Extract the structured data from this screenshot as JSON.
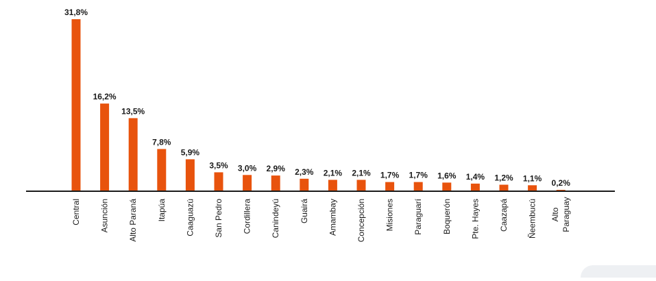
{
  "chart_data": {
    "type": "bar",
    "categories": [
      "Central",
      "Asunción",
      "Alto Paraná",
      "Itapúa",
      "Caaguazú",
      "San Pedro",
      "Cordillera",
      "Canindeyú",
      "Guairá",
      "Amambay",
      "Concepción",
      "Misiones",
      "Paraguarí",
      "Boquerón",
      "Pte. Hayes",
      "Caazapá",
      "Ñeembucú",
      "Alto Paraguay"
    ],
    "category_lines": [
      [
        "Central"
      ],
      [
        "Asunción"
      ],
      [
        "Alto Paraná"
      ],
      [
        "Itapúa"
      ],
      [
        "Caaguazú"
      ],
      [
        "San Pedro"
      ],
      [
        "Cordillera"
      ],
      [
        "Canindeyú"
      ],
      [
        "Guairá"
      ],
      [
        "Amambay"
      ],
      [
        "Concepción"
      ],
      [
        "Misiones"
      ],
      [
        "Paraguarí"
      ],
      [
        "Boquerón"
      ],
      [
        "Pte. Hayes"
      ],
      [
        "Caazapá"
      ],
      [
        "Ñeembucú"
      ],
      [
        "Alto",
        "Paraguay"
      ]
    ],
    "values": [
      31.8,
      16.2,
      13.5,
      7.8,
      5.9,
      3.5,
      3.0,
      2.9,
      2.3,
      2.1,
      2.1,
      1.7,
      1.7,
      1.6,
      1.4,
      1.2,
      1.1,
      0.2
    ],
    "value_labels": [
      "31,8%",
      "16,2%",
      "13,5%",
      "7,8%",
      "5,9%",
      "3,5%",
      "3,0%",
      "2,9%",
      "2,3%",
      "2,1%",
      "2,1%",
      "1,7%",
      "1,7%",
      "1,6%",
      "1,4%",
      "1,2%",
      "1,1%",
      "0,2%"
    ],
    "unit": "%",
    "ylim": [
      0,
      31.8
    ],
    "grid": false,
    "legend": "none",
    "bar_color": "#e8530d",
    "axis_color": "#1a1a1a",
    "title": "",
    "xlabel": "",
    "ylabel": ""
  }
}
